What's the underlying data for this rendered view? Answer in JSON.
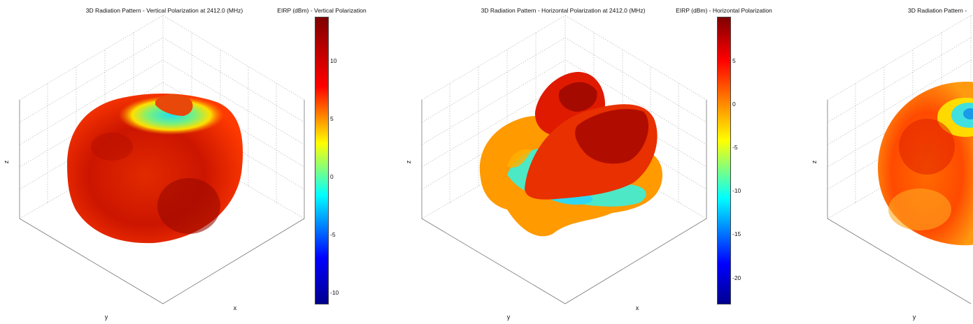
{
  "colormap": [
    "#00008f",
    "#0000ff",
    "#00ffff",
    "#ffff00",
    "#ff0000",
    "#800000"
  ],
  "chart_data": [
    {
      "type": "surface",
      "title": "3D Radiation Pattern  - Vertical Polarization at 2412.0 (MHz)",
      "colorbar_title": "EIRP (dBm) - Vertical Polarization",
      "colorbar_ticks": [
        "10",
        "5",
        "0",
        "-5",
        "-10"
      ],
      "colorbar_range": [
        -12,
        14
      ],
      "axis_labels": {
        "x": "x",
        "y": "y",
        "z": "z"
      },
      "grid": true
    },
    {
      "type": "surface",
      "title": "3D Radiation Pattern  - Horizontal Polarization at 2412.0 (MHz)",
      "colorbar_title": "EIRP (dBm) - Horizontal Polarization",
      "colorbar_ticks": [
        "5",
        "0",
        "-5",
        "-10",
        "-15",
        "-20"
      ],
      "colorbar_range": [
        -23,
        10
      ],
      "axis_labels": {
        "x": "x",
        "y": "y",
        "z": "z"
      },
      "grid": true
    },
    {
      "type": "surface",
      "title": "3D Radiation Pattern  -",
      "axis_labels": {
        "y": "y",
        "z": "z"
      },
      "grid": true
    }
  ]
}
